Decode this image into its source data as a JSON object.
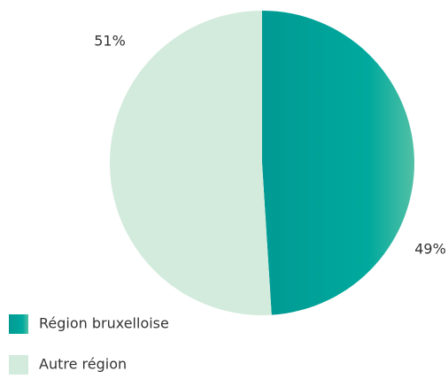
{
  "chart_data": {
    "type": "pie",
    "categories": [
      "Région bruxelloise",
      "Autre région"
    ],
    "values": [
      49,
      51
    ],
    "value_labels": [
      "49%",
      "51%"
    ],
    "colors": [
      "#00a99d",
      "#d3ebdc"
    ]
  }
}
